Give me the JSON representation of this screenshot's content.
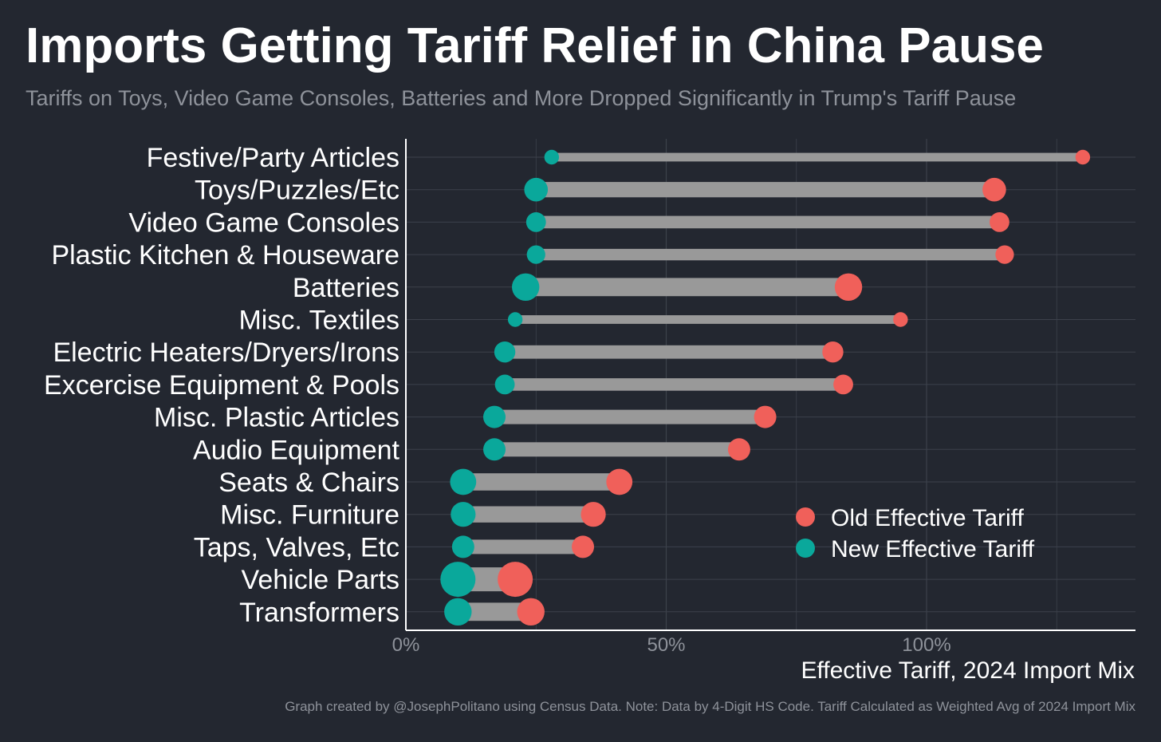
{
  "header": {
    "title": "Imports Getting Tariff Relief in China Pause",
    "subtitle": "Tariffs on Toys, Video Game Consoles, Batteries and More Dropped Significantly in Trump's Tariff Pause"
  },
  "footer": {
    "caption": "Graph created by @JosephPolitano using Census Data. Note: Data by 4-Digit HS Code. Tariff Calculated as Weighted Avg of 2024 Import Mix"
  },
  "colors": {
    "old": "#f0605a",
    "new": "#0aa89b",
    "segment": "#999999",
    "background": "#232730",
    "grid": "#3c414b"
  },
  "chart_data": {
    "type": "dumbbell",
    "xlabel": "Effective Tariff, 2024 Import Mix",
    "xlim": [
      0,
      140
    ],
    "x_ticks": [
      0,
      50,
      100
    ],
    "x_tick_labels": [
      "0%",
      "50%",
      "100%"
    ],
    "grid": true,
    "legend_position": "bottom-right",
    "legend": [
      {
        "name": "Old Effective Tariff",
        "color": "#f0605a"
      },
      {
        "name": "New Effective Tariff",
        "color": "#0aa89b"
      }
    ],
    "categories": [
      "Festive/Party Articles",
      "Toys/Puzzles/Etc",
      "Video Game Consoles",
      "Plastic Kitchen & Houseware",
      "Batteries",
      "Misc. Textiles",
      "Electric Heaters/Dryers/Irons",
      "Excercise Equipment & Pools",
      "Misc. Plastic Articles",
      "Audio Equipment",
      "Seats & Chairs",
      "Misc. Furniture",
      "Taps, Valves, Etc",
      "Vehicle Parts",
      "Transformers"
    ],
    "series": [
      {
        "name": "Old Effective Tariff",
        "values": [
          130,
          113,
          114,
          115,
          85,
          95,
          82,
          84,
          69,
          64,
          41,
          36,
          34,
          21,
          24
        ]
      },
      {
        "name": "New Effective Tariff",
        "values": [
          28,
          25,
          25,
          25,
          23,
          21,
          19,
          19,
          17,
          17,
          11,
          11,
          11,
          10,
          10
        ]
      }
    ],
    "import_weight": [
      0.2,
      0.55,
      0.4,
      0.35,
      0.7,
      0.2,
      0.45,
      0.4,
      0.5,
      0.5,
      0.65,
      0.6,
      0.5,
      1.0,
      0.7
    ]
  }
}
